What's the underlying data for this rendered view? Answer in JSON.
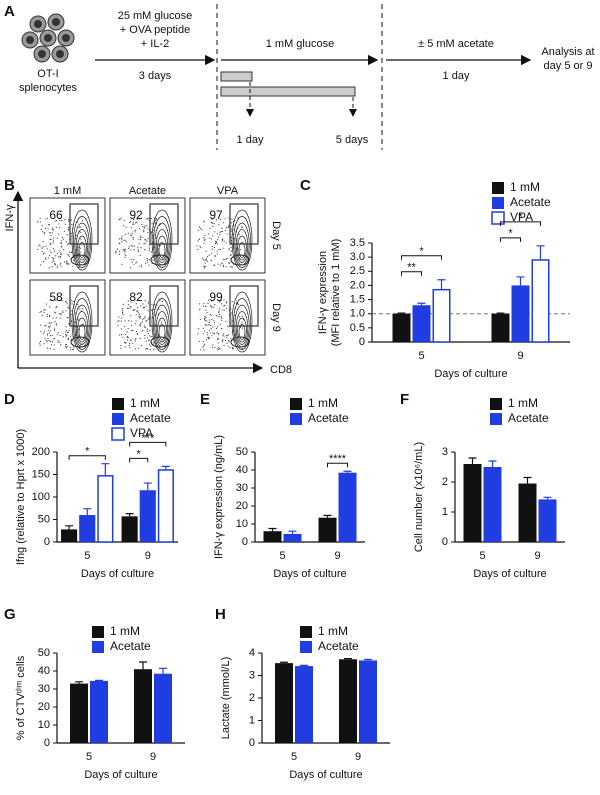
{
  "panel_a": {
    "label": "A",
    "cells": [
      "OT-I",
      "splenocytes"
    ],
    "step1": [
      "25 mM glucose",
      "+ OVA peptide",
      "+ IL-2"
    ],
    "step1_duration": "3 days",
    "step2": "1 mM glucose",
    "step3": "± 5 mM acetate",
    "step3_duration": "1 day",
    "analysis": [
      "Analysis at",
      "day 5 or 9"
    ],
    "durations": [
      "1 day",
      "5 days"
    ]
  },
  "panel_b": {
    "label": "B",
    "columns": [
      "1 mM",
      "Acetate",
      "VPA"
    ],
    "rows": [
      {
        "name": "Day 5",
        "percent": [
          66,
          92,
          97
        ]
      },
      {
        "name": "Day 9",
        "percent": [
          58,
          82,
          99
        ]
      }
    ],
    "ylabel": "IFN-γ",
    "xlabel": "CD8"
  },
  "chart_data": [
    {
      "type": "bar",
      "label": "C",
      "ylabel": [
        "IFN-γ expression",
        "(MFI relative to 1 mM)"
      ],
      "xlabel": "Days of culture",
      "categories": [
        "5",
        "9"
      ],
      "series": [
        {
          "name": "1 mM",
          "color": "#111111",
          "values": [
            1,
            1
          ],
          "errors": [
            0.02,
            0.02
          ]
        },
        {
          "name": "Acetate",
          "color": "#1f3de0",
          "values": [
            1.3,
            2.0
          ],
          "errors": [
            0.07,
            0.3
          ]
        },
        {
          "name": "VPA",
          "color": "#1f3de0",
          "hollow": true,
          "values": [
            1.85,
            2.9
          ],
          "errors": [
            0.35,
            0.5
          ]
        }
      ],
      "ylim": [
        0,
        3.5
      ],
      "yticks": [
        0,
        0.5,
        {
          "value": 1,
          "label": "1.0"
        },
        1.5,
        {
          "value": 2,
          "label": "2.0"
        },
        2.5,
        {
          "value": 3,
          "label": "3.0"
        },
        3.5
      ],
      "reference_line": 1,
      "significance": [
        {
          "label": "**",
          "category": 0,
          "series": [
            0,
            1
          ]
        },
        {
          "label": "*",
          "category": 0,
          "series": [
            0,
            2
          ]
        },
        {
          "label": "*",
          "category": 1,
          "series": [
            0,
            1
          ]
        },
        {
          "label": "*",
          "category": 1,
          "series": [
            0,
            2
          ]
        }
      ]
    },
    {
      "type": "bar",
      "label": "D",
      "ylabel": [
        "Ifng (relative to Hprt x 1000)"
      ],
      "xlabel": "Days of culture",
      "categories": [
        "5",
        "9"
      ],
      "series": [
        {
          "name": "1 mM",
          "color": "#111111",
          "values": [
            28,
            57
          ],
          "errors": [
            8,
            6
          ]
        },
        {
          "name": "Acetate",
          "color": "#1f3de0",
          "values": [
            60,
            115
          ],
          "errors": [
            14,
            16
          ]
        },
        {
          "name": "VPA",
          "color": "#1f3de0",
          "hollow": true,
          "values": [
            147,
            160
          ],
          "errors": [
            27,
            8
          ]
        }
      ],
      "ylim": [
        0,
        200
      ],
      "yticks": [
        0,
        50,
        100,
        150,
        200
      ],
      "significance": [
        {
          "label": "*",
          "category": 0,
          "series": [
            0,
            2
          ]
        },
        {
          "label": "*",
          "category": 1,
          "series": [
            0,
            1
          ]
        },
        {
          "label": "***",
          "category": 1,
          "series": [
            0,
            2
          ]
        }
      ]
    },
    {
      "type": "bar",
      "label": "E",
      "ylabel": [
        "IFN-γ expression (ng/mL)"
      ],
      "xlabel": "Days of culture",
      "categories": [
        "5",
        "9"
      ],
      "series": [
        {
          "name": "1 mM",
          "color": "#111111",
          "values": [
            6,
            13.5
          ],
          "errors": [
            1.5,
            1.3
          ]
        },
        {
          "name": "Acetate",
          "color": "#1f3de0",
          "values": [
            4.5,
            38.5
          ],
          "errors": [
            1.5,
            0.8
          ]
        }
      ],
      "ylim": [
        0,
        50
      ],
      "yticks": [
        0,
        10,
        20,
        30,
        40,
        50
      ],
      "significance": [
        {
          "label": "****",
          "category": 1,
          "series": [
            0,
            1
          ]
        }
      ]
    },
    {
      "type": "bar",
      "label": "F",
      "ylabel": [
        "Cell number (x10⁶/mL)"
      ],
      "xlabel": "Days of culture",
      "categories": [
        "5",
        "9"
      ],
      "series": [
        {
          "name": "1 mM",
          "color": "#111111",
          "values": [
            2.6,
            1.95
          ],
          "errors": [
            0.2,
            0.2
          ]
        },
        {
          "name": "Acetate",
          "color": "#1f3de0",
          "values": [
            2.5,
            1.42
          ],
          "errors": [
            0.2,
            0.07
          ]
        }
      ],
      "ylim": [
        0,
        3
      ],
      "yticks": [
        0,
        1,
        2,
        3
      ]
    },
    {
      "type": "bar",
      "label": "G",
      "ylabel": [
        "% of CTVᵈⁱᵐ cells"
      ],
      "xlabel": "Days of culture",
      "categories": [
        "5",
        "9"
      ],
      "series": [
        {
          "name": "1 mM",
          "color": "#111111",
          "values": [
            33,
            41
          ],
          "errors": [
            1,
            4
          ]
        },
        {
          "name": "Acetate",
          "color": "#1f3de0",
          "values": [
            34.5,
            38.5
          ],
          "errors": [
            0.3,
            3
          ]
        }
      ],
      "ylim": [
        0,
        50
      ],
      "yticks": [
        0,
        10,
        20,
        30,
        40,
        50
      ]
    },
    {
      "type": "bar",
      "label": "H",
      "ylabel": [
        "Lactate (mmol/L)"
      ],
      "xlabel": "Days of culture",
      "categories": [
        "5",
        "9"
      ],
      "series": [
        {
          "name": "1 mM",
          "color": "#111111",
          "values": [
            3.55,
            3.72
          ],
          "errors": [
            0.04,
            0.03
          ]
        },
        {
          "name": "Acetate",
          "color": "#1f3de0",
          "values": [
            3.42,
            3.67
          ],
          "errors": [
            0.03,
            0.04
          ]
        }
      ],
      "ylim": [
        0,
        4
      ],
      "yticks": [
        0,
        1,
        2,
        3,
        4
      ]
    }
  ]
}
